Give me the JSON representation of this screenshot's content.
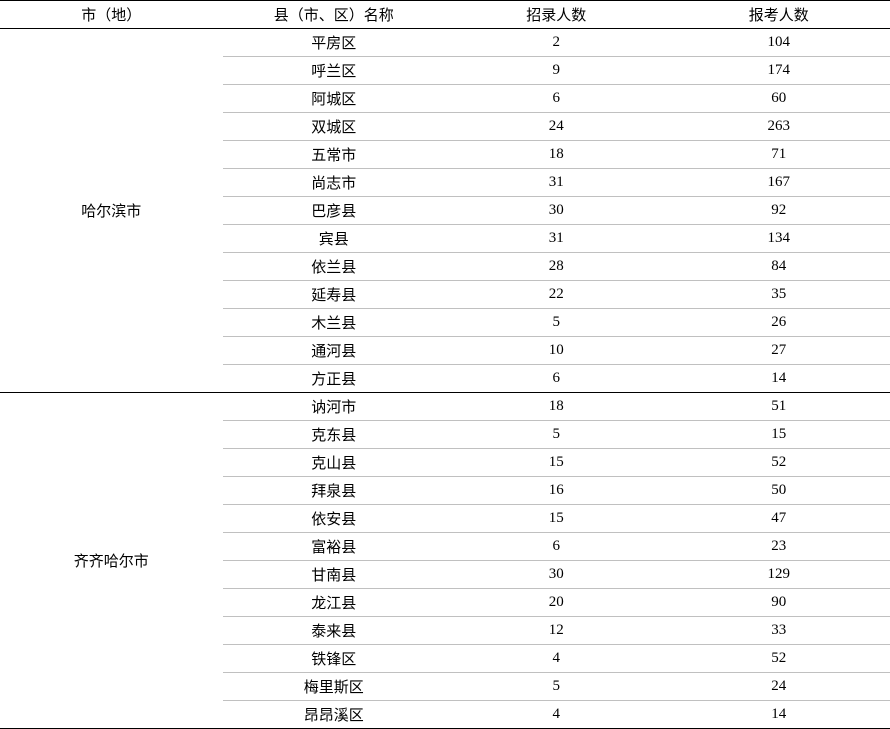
{
  "columns": [
    "市（地）",
    "县（市、区）名称",
    "招录人数",
    "报考人数"
  ],
  "groups": [
    {
      "city": "哈尔滨市",
      "rows": [
        {
          "county": "平房区",
          "recruit": "2",
          "apply": "104"
        },
        {
          "county": "呼兰区",
          "recruit": "9",
          "apply": "174"
        },
        {
          "county": "阿城区",
          "recruit": "6",
          "apply": "60"
        },
        {
          "county": "双城区",
          "recruit": "24",
          "apply": "263"
        },
        {
          "county": "五常市",
          "recruit": "18",
          "apply": "71"
        },
        {
          "county": "尚志市",
          "recruit": "31",
          "apply": "167"
        },
        {
          "county": "巴彦县",
          "recruit": "30",
          "apply": "92"
        },
        {
          "county": "宾县",
          "recruit": "31",
          "apply": "134"
        },
        {
          "county": "依兰县",
          "recruit": "28",
          "apply": "84"
        },
        {
          "county": "延寿县",
          "recruit": "22",
          "apply": "35"
        },
        {
          "county": "木兰县",
          "recruit": "5",
          "apply": "26"
        },
        {
          "county": "通河县",
          "recruit": "10",
          "apply": "27"
        },
        {
          "county": "方正县",
          "recruit": "6",
          "apply": "14"
        }
      ]
    },
    {
      "city": "齐齐哈尔市",
      "rows": [
        {
          "county": "讷河市",
          "recruit": "18",
          "apply": "51"
        },
        {
          "county": "克东县",
          "recruit": "5",
          "apply": "15"
        },
        {
          "county": "克山县",
          "recruit": "15",
          "apply": "52"
        },
        {
          "county": "拜泉县",
          "recruit": "16",
          "apply": "50"
        },
        {
          "county": "依安县",
          "recruit": "15",
          "apply": "47"
        },
        {
          "county": "富裕县",
          "recruit": "6",
          "apply": "23"
        },
        {
          "county": "甘南县",
          "recruit": "30",
          "apply": "129"
        },
        {
          "county": "龙江县",
          "recruit": "20",
          "apply": "90"
        },
        {
          "county": "泰来县",
          "recruit": "12",
          "apply": "33"
        },
        {
          "county": "铁锋区",
          "recruit": "4",
          "apply": "52"
        },
        {
          "county": "梅里斯区",
          "recruit": "5",
          "apply": "24"
        },
        {
          "county": "昂昂溪区",
          "recruit": "4",
          "apply": "14"
        }
      ]
    }
  ]
}
